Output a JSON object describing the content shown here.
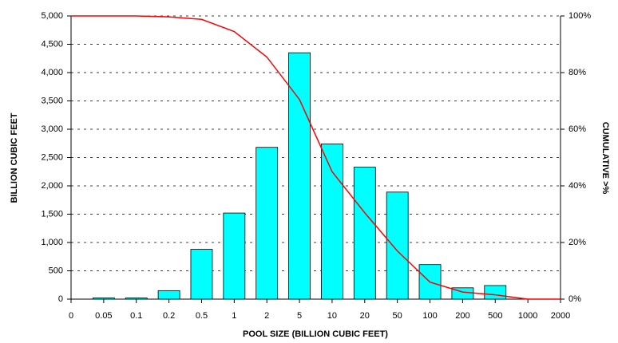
{
  "chart_data": {
    "type": "bar",
    "y_label": "BILLION CUBIC FEET",
    "y2_label": "CUMULATIVE >%",
    "x_label": "POOL SIZE (BILLION CUBIC FEET)",
    "categories": [
      "0",
      "0.05",
      "0.1",
      "0.2",
      "0.5",
      "1",
      "2",
      "5",
      "10",
      "20",
      "50",
      "100",
      "200",
      "500",
      "1000",
      "2000"
    ],
    "series": [
      {
        "type": "bar",
        "color": "#00ffff",
        "values": [
          null,
          20,
          20,
          150,
          880,
          1520,
          2680,
          4350,
          2740,
          2330,
          1890,
          610,
          200,
          240,
          null,
          null
        ]
      },
      {
        "type": "line",
        "color": "#ff0000",
        "axis": "y2",
        "values": [
          100,
          100,
          100,
          99.7,
          98.8,
          94.5,
          85.5,
          70.5,
          45,
          30.5,
          17,
          6,
          2.5,
          1.5,
          0,
          0
        ]
      }
    ],
    "ylim": [
      0,
      5000
    ],
    "yticks": [
      0,
      500,
      {
        "value": 1000,
        "label": "1,000"
      },
      {
        "value": 1500,
        "label": "1,500"
      },
      {
        "value": 2000,
        "label": "2,000"
      },
      {
        "value": 2500,
        "label": "2,500"
      },
      {
        "value": 3000,
        "label": "3,000"
      },
      {
        "value": 3500,
        "label": "3,500"
      },
      {
        "value": 4000,
        "label": "4,000"
      },
      {
        "value": 4500,
        "label": "4,500"
      },
      {
        "value": 5000,
        "label": "5,000"
      }
    ],
    "y2lim": [
      0,
      100
    ],
    "y2ticks": [
      {
        "value": 0,
        "label": "0%"
      },
      {
        "value": 20,
        "label": "20%"
      },
      {
        "value": 40,
        "label": "40%"
      },
      {
        "value": 60,
        "label": "60%"
      },
      {
        "value": 80,
        "label": "80%"
      },
      {
        "value": 100,
        "label": "100%"
      }
    ],
    "grid": true
  }
}
